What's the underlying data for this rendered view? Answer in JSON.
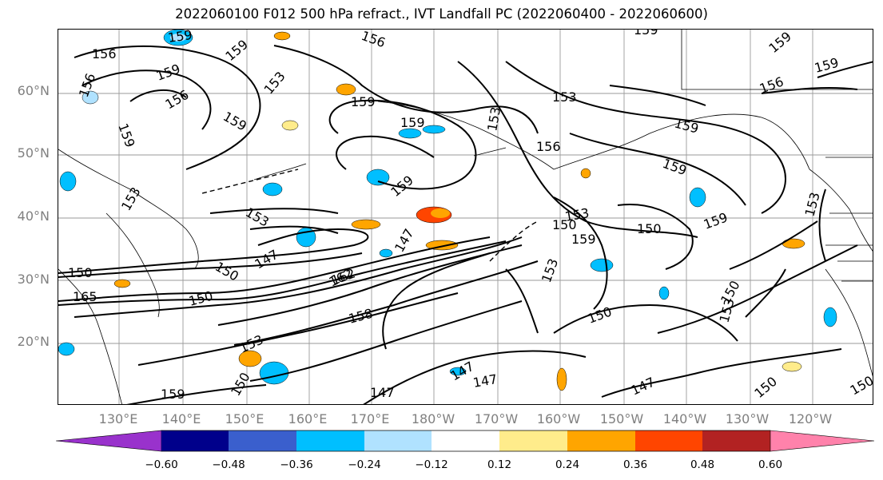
{
  "title": "2022060100 F012 500 hPa refract., IVT Landfall PC (2022060400 - 2022060600)",
  "lat_labels": [
    "60°N",
    "50°N",
    "40°N",
    "30°N",
    "20°N"
  ],
  "lon_labels": [
    "130°E",
    "140°E",
    "150°E",
    "160°E",
    "170°E",
    "180°W",
    "170°W",
    "160°W",
    "150°W",
    "140°W",
    "130°W",
    "120°W"
  ],
  "contour_labels": [
    "159",
    "156",
    "159",
    "159",
    "156",
    "156",
    "153",
    "159",
    "159",
    "159",
    "153",
    "153",
    "156",
    "159",
    "159",
    "156",
    "159",
    "159",
    "159",
    "156",
    "153",
    "153",
    "159",
    "159",
    "150",
    "150",
    "153",
    "159",
    "147",
    "162",
    "150",
    "150",
    "147",
    "147",
    "153",
    "150",
    "147",
    "150",
    "147",
    "153",
    "153",
    "165",
    "150",
    "158",
    "162",
    "153",
    "150",
    "159",
    "150",
    "147",
    "150",
    "159"
  ],
  "colorbar": {
    "ticks": [
      "−0.60",
      "−0.48",
      "−0.36",
      "−0.24",
      "−0.12",
      "0.12",
      "0.24",
      "0.36",
      "0.48",
      "0.60"
    ],
    "colors": [
      "#9932cc",
      "#00008b",
      "#3a5fcd",
      "#00bfff",
      "#b0e2ff",
      "#ffffff",
      "#ffec8b",
      "#ffa500",
      "#ff4500",
      "#b22222",
      "#ff82ab"
    ]
  }
}
